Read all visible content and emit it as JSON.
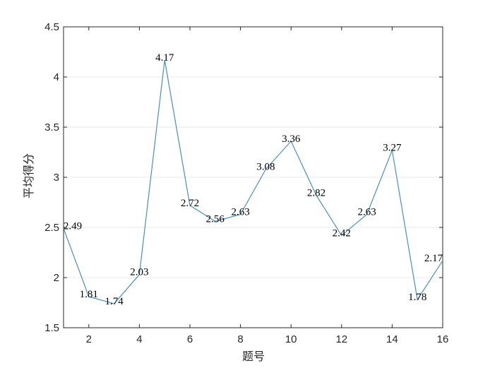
{
  "chart_data": {
    "type": "line",
    "title": "",
    "xlabel": "题号",
    "ylabel": "平均得分",
    "xlim": [
      1,
      16
    ],
    "ylim": [
      1.5,
      4.5
    ],
    "xticks": [
      2,
      4,
      6,
      8,
      10,
      12,
      14,
      16
    ],
    "yticks": [
      1.5,
      2,
      2.5,
      3,
      3.5,
      4,
      4.5
    ],
    "xtick_labels": [
      "2",
      "4",
      "6",
      "8",
      "10",
      "12",
      "14",
      "16"
    ],
    "ytick_labels": [
      "1.5",
      "2",
      "2.5",
      "3",
      "3.5",
      "4",
      "4.5"
    ],
    "grid": "horizontal",
    "line_color": "#4a90b8",
    "x": [
      1,
      2,
      3,
      4,
      5,
      6,
      7,
      8,
      9,
      10,
      11,
      12,
      13,
      14,
      15,
      16
    ],
    "values": [
      2.49,
      1.81,
      1.74,
      2.03,
      4.17,
      2.72,
      2.56,
      2.63,
      3.08,
      3.36,
      2.82,
      2.42,
      2.63,
      3.27,
      1.78,
      2.17
    ],
    "data_labels": [
      "2.49",
      "1.81",
      "1.74",
      "2.03",
      "4.17",
      "2.72",
      "2.56",
      "2.63",
      "3.08",
      "3.36",
      "2.82",
      "2.42",
      "2.63",
      "3.27",
      "1.78",
      "2.17"
    ]
  }
}
